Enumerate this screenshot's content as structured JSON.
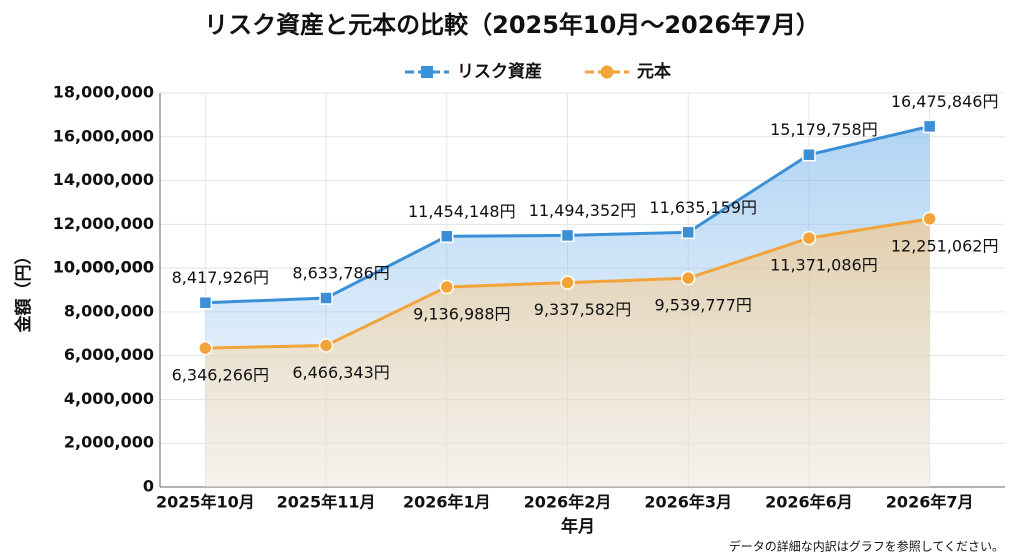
{
  "chart_data": {
    "type": "line",
    "title": "リスク資産と元本の比較（2025年10月～2026年7月）",
    "x_label": "年月",
    "y_label": "金額（円）",
    "footnote": "データの詳細な内訳はグラフを参照してください。",
    "categories": [
      "2025年10月",
      "2025年11月",
      "2026年1月",
      "2026年2月",
      "2026年3月",
      "2026年6月",
      "2026年7月"
    ],
    "series": [
      {
        "name": "リスク資産",
        "color": "#3a8fd6",
        "marker": "square",
        "values": [
          8417926,
          8633786,
          11454148,
          11494352,
          11635159,
          15179758,
          16475846
        ],
        "value_labels": [
          "8,417,926円",
          "8,633,786円",
          "11,454,148円",
          "11,494,352円",
          "11,635,159円",
          "15,179,758円",
          "16,475,846円"
        ]
      },
      {
        "name": "元本",
        "color": "#f2a33a",
        "marker": "circle",
        "values": [
          6346266,
          6466343,
          9136988,
          9337582,
          9539777,
          11371086,
          12251062
        ],
        "value_labels": [
          "6,346,266円",
          "6,466,343円",
          "9,136,988円",
          "9,337,582円",
          "9,539,777円",
          "11,371,086円",
          "12,251,062円"
        ]
      }
    ],
    "ylim": [
      0,
      18000000
    ],
    "yticks": [
      0,
      {
        "value": 2000000,
        "label": "2,000,000"
      },
      {
        "value": 4000000,
        "label": "4,000,000"
      },
      {
        "value": 6000000,
        "label": "6,000,000"
      },
      {
        "value": 8000000,
        "label": "8,000,000"
      },
      {
        "value": 10000000,
        "label": "10,000,000"
      },
      {
        "value": 10000000,
        "label": "10,000,000"
      },
      {
        "value": 12000000,
        "label": "12,000,000"
      },
      {
        "value": 14000000,
        "label": "14,000,000"
      },
      {
        "value": 16000000,
        "label": "16,000,000"
      },
      {
        "value": 18000000,
        "label": "18,000,000"
      }
    ],
    "grid": true,
    "legend": "top"
  }
}
